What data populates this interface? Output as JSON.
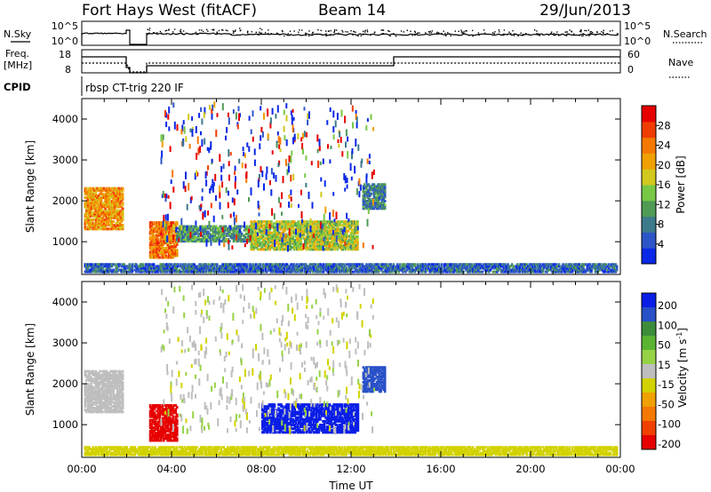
{
  "header": {
    "station": "Fort Hays West (fitACF)",
    "beam": "Beam 14",
    "date": "29/Jun/2013",
    "cpid_label": "CPID",
    "cpid_value": "rbsp CT-trig 220 IF"
  },
  "noise_panel": {
    "left_label": "N.Sky",
    "right_label": "N.Search",
    "left_ticks": [
      "10^5",
      "10^0"
    ],
    "right_ticks": [
      "10^5",
      "10^0"
    ]
  },
  "freq_panel": {
    "left_label_1": "Freq.",
    "left_label_2": "[MHz]",
    "right_label": "Nave",
    "left_ticks": [
      "18",
      "8"
    ],
    "right_ticks": [
      "60",
      "0"
    ]
  },
  "colors": {
    "power_scale": [
      "#0a28e6",
      "#2d55c8",
      "#3c7a8c",
      "#4f9a55",
      "#78c846",
      "#d2c81e",
      "#f0a000",
      "#f57800",
      "#f03c00",
      "#e60000"
    ],
    "velocity_scale": [
      "#e60000",
      "#f04000",
      "#f57800",
      "#f0a000",
      "#d2d200",
      "#bebebe",
      "#96d246",
      "#5ab432",
      "#3c8c3c",
      "#2850c8",
      "#0a1ee6"
    ]
  },
  "chart_data": [
    {
      "type": "heatmap",
      "name": "power",
      "xlabel": "",
      "ylabel": "Slant Range [km]",
      "ylim": [
        200,
        4500
      ],
      "y_ticks": [
        1000,
        2000,
        3000,
        4000
      ],
      "x_range_hours": [
        0,
        24
      ],
      "colorbar": {
        "label": "Power [dB]",
        "range": [
          0,
          32
        ],
        "ticks": [
          4,
          8,
          12,
          16,
          20,
          24,
          28
        ]
      },
      "echo_regions": [
        {
          "t0": 0.1,
          "t1": 1.8,
          "r0": 1300,
          "r1": 2300,
          "value": 22
        },
        {
          "t0": 3.0,
          "t1": 4.2,
          "r0": 600,
          "r1": 1500,
          "value": 24
        },
        {
          "t0": 4.2,
          "t1": 7.5,
          "r0": 1000,
          "r1": 1400,
          "value": 10
        },
        {
          "t0": 7.5,
          "t1": 12.3,
          "r0": 800,
          "r1": 1500,
          "value": 16
        },
        {
          "t0": 12.5,
          "t1": 13.5,
          "r0": 1800,
          "r1": 2400,
          "value": 8
        },
        {
          "t0": 0.1,
          "t1": 23.8,
          "r0": 250,
          "r1": 450,
          "value": 6
        }
      ]
    },
    {
      "type": "heatmap",
      "name": "velocity",
      "xlabel": "Time UT",
      "ylabel": "Slant Range [km]",
      "ylim": [
        200,
        4500
      ],
      "y_ticks": [
        1000,
        2000,
        3000,
        4000
      ],
      "x_range_hours": [
        0,
        24
      ],
      "x_tick_labels": [
        "00:00",
        "04:00",
        "08:00",
        "12:00",
        "16:00",
        "20:00",
        "00:00"
      ],
      "colorbar": {
        "label": "Velocity [m s^-1]",
        "tick_labels": [
          "200",
          "100",
          "50",
          "15",
          "-15",
          "-50",
          "-100",
          "-200"
        ]
      },
      "echo_regions": [
        {
          "t0": 0.1,
          "t1": 1.8,
          "r0": 1300,
          "r1": 2300,
          "value": 0
        },
        {
          "t0": 3.0,
          "t1": 4.2,
          "r0": 600,
          "r1": 1500,
          "value": -200
        },
        {
          "t0": 8.0,
          "t1": 12.3,
          "r0": 800,
          "r1": 1500,
          "value": 200
        },
        {
          "t0": 12.5,
          "t1": 13.5,
          "r0": 1800,
          "r1": 2400,
          "value": 150
        },
        {
          "t0": 0.1,
          "t1": 23.8,
          "r0": 250,
          "r1": 450,
          "value": -40
        }
      ]
    }
  ]
}
